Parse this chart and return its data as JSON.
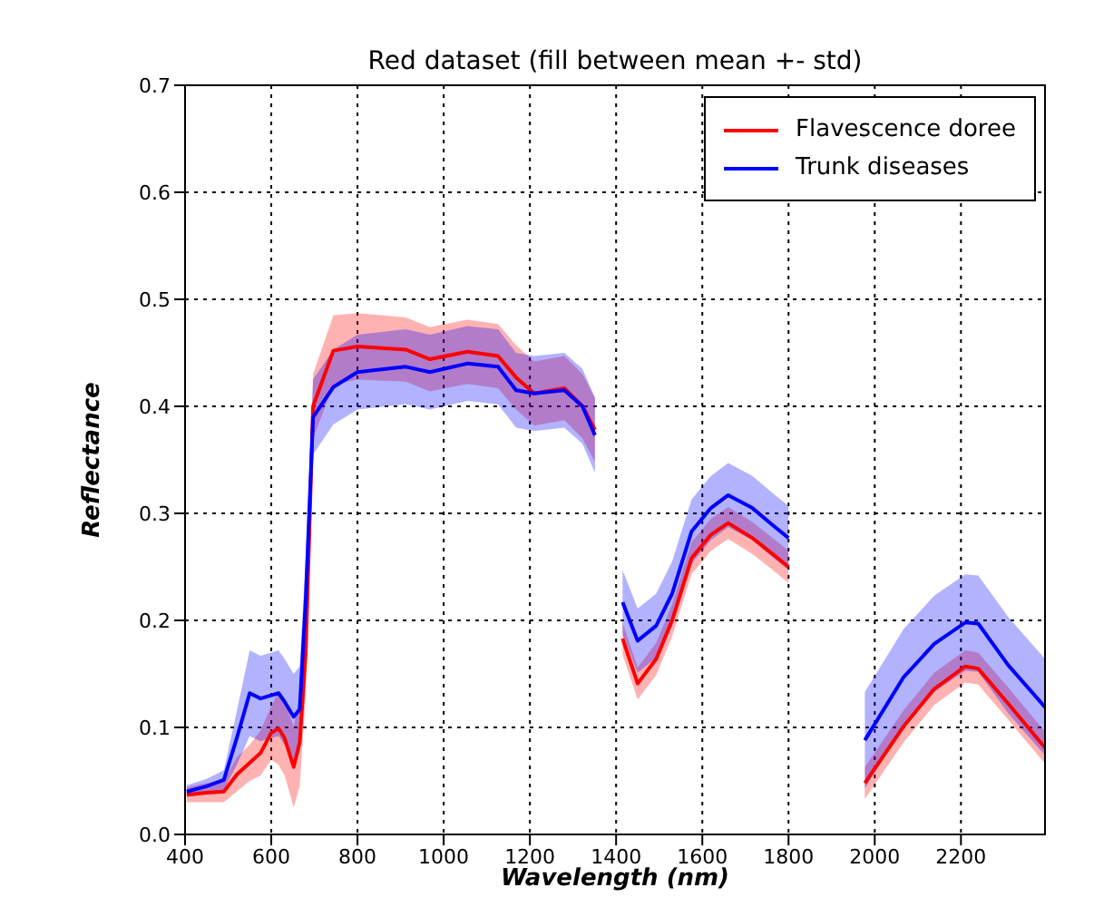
{
  "chart_data": {
    "type": "line",
    "title": "Red dataset (fill between mean +- std)",
    "xlabel": "Wavelength (nm)",
    "ylabel": "Reflectance",
    "x": [
      404,
      450,
      490,
      520,
      550,
      575,
      600,
      617,
      631,
      652,
      666,
      680,
      697,
      744,
      800,
      912,
      968,
      1055,
      1126,
      1168,
      1210,
      1280,
      1322,
      1351,
      1380,
      1415,
      1450,
      1493,
      1530,
      1575,
      1620,
      1660,
      1716,
      1760,
      1800,
      1900,
      1977,
      2067,
      2138,
      2210,
      2240,
      2310,
      2395
    ],
    "series": [
      {
        "name": "Flavescence doree",
        "color": "#ff0000",
        "values": [
          0.037,
          0.039,
          0.04,
          0.056,
          0.067,
          0.076,
          0.095,
          0.099,
          0.09,
          0.063,
          0.086,
          0.17,
          0.4,
          0.452,
          0.456,
          0.453,
          0.444,
          0.451,
          0.447,
          0.427,
          0.412,
          0.417,
          0.4,
          0.378,
          null,
          0.183,
          0.141,
          0.164,
          0.2,
          0.258,
          0.28,
          0.291,
          0.277,
          0.263,
          0.25,
          null,
          0.048,
          0.101,
          0.136,
          0.157,
          0.155,
          0.122,
          0.081
        ],
        "lower": [
          0.03,
          0.03,
          0.03,
          0.04,
          0.05,
          0.055,
          0.07,
          0.065,
          0.055,
          0.025,
          0.045,
          0.13,
          0.37,
          0.42,
          0.425,
          0.423,
          0.414,
          0.421,
          0.417,
          0.397,
          0.382,
          0.387,
          0.37,
          0.348,
          null,
          0.168,
          0.126,
          0.149,
          0.185,
          0.243,
          0.265,
          0.276,
          0.262,
          0.248,
          0.235,
          null,
          0.033,
          0.086,
          0.121,
          0.142,
          0.14,
          0.107,
          0.066
        ],
        "upper": [
          0.044,
          0.048,
          0.05,
          0.072,
          0.084,
          0.097,
          0.12,
          0.133,
          0.125,
          0.101,
          0.127,
          0.21,
          0.43,
          0.485,
          0.487,
          0.483,
          0.474,
          0.481,
          0.477,
          0.457,
          0.442,
          0.447,
          0.43,
          0.408,
          null,
          0.198,
          0.156,
          0.179,
          0.215,
          0.273,
          0.295,
          0.306,
          0.292,
          0.278,
          0.265,
          null,
          0.063,
          0.116,
          0.151,
          0.172,
          0.17,
          0.137,
          0.096
        ]
      },
      {
        "name": "Trunk diseases",
        "color": "#0000ff",
        "values": [
          0.04,
          0.045,
          0.051,
          0.09,
          0.132,
          0.127,
          0.13,
          0.132,
          0.124,
          0.11,
          0.117,
          0.22,
          0.39,
          0.418,
          0.432,
          0.437,
          0.432,
          0.44,
          0.437,
          0.415,
          0.412,
          0.415,
          0.4,
          0.373,
          null,
          0.217,
          0.181,
          0.195,
          0.225,
          0.283,
          0.305,
          0.317,
          0.305,
          0.29,
          0.277,
          null,
          0.088,
          0.147,
          0.178,
          0.198,
          0.197,
          0.158,
          0.119
        ],
        "lower": [
          0.035,
          0.038,
          0.042,
          0.065,
          0.092,
          0.087,
          0.09,
          0.092,
          0.084,
          0.07,
          0.077,
          0.18,
          0.355,
          0.383,
          0.397,
          0.402,
          0.397,
          0.405,
          0.402,
          0.38,
          0.377,
          0.38,
          0.365,
          0.338,
          null,
          0.187,
          0.151,
          0.165,
          0.195,
          0.253,
          0.275,
          0.287,
          0.275,
          0.26,
          0.247,
          null,
          0.043,
          0.102,
          0.133,
          0.153,
          0.152,
          0.113,
          0.074
        ],
        "upper": [
          0.046,
          0.052,
          0.06,
          0.115,
          0.172,
          0.167,
          0.17,
          0.172,
          0.164,
          0.15,
          0.157,
          0.26,
          0.425,
          0.453,
          0.467,
          0.472,
          0.467,
          0.475,
          0.472,
          0.45,
          0.447,
          0.45,
          0.435,
          0.408,
          null,
          0.247,
          0.211,
          0.225,
          0.255,
          0.313,
          0.335,
          0.347,
          0.335,
          0.32,
          0.307,
          null,
          0.133,
          0.192,
          0.223,
          0.243,
          0.242,
          0.203,
          0.164
        ]
      }
    ],
    "xlim": [
      400,
      2395
    ],
    "xticks": [
      400,
      600,
      800,
      1000,
      1200,
      1400,
      1600,
      1800,
      2000,
      2200
    ],
    "ylim": [
      0,
      0.7
    ],
    "yticks": [
      {
        "value": 0,
        "label": "0.0"
      },
      0.1,
      0.2,
      0.3,
      0.4,
      0.5,
      0.6,
      0.7
    ],
    "grid": true,
    "legend": "top right",
    "marker": "none",
    "line_style": "solid"
  }
}
